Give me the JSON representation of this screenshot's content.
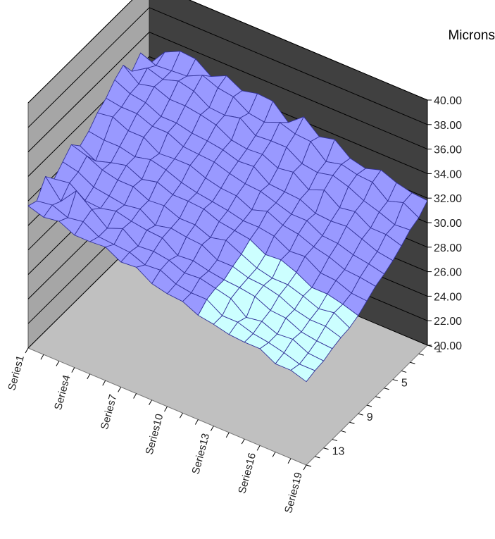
{
  "chart_data": {
    "type": "surface",
    "units_label": "Microns",
    "z_axis": {
      "min": 20,
      "max": 40,
      "step": 2,
      "tick_labels": [
        "20.00",
        "22.00",
        "24.00",
        "26.00",
        "28.00",
        "30.00",
        "32.00",
        "34.00",
        "36.00",
        "38.00",
        "40.00"
      ]
    },
    "series_axis": {
      "tick_labels": [
        "Series1",
        "Series4",
        "Series7",
        "Series10",
        "Series13",
        "Series16",
        "Series19"
      ],
      "count": 19
    },
    "category_axis": {
      "tick_labels": [
        "1",
        "5",
        "9",
        "13"
      ],
      "count": 15
    },
    "bands": [
      {
        "range": [
          20,
          30
        ],
        "color": "#ccffff"
      },
      {
        "range": [
          30,
          40
        ],
        "color": "#9999ff"
      }
    ],
    "colors": {
      "back_wall": "#404040",
      "side_wall": "#a6a6a6",
      "floor": "#c0c0c0",
      "grid": "#000000",
      "mesh_line": "#333399"
    },
    "values": [
      [
        31.6,
        31.3,
        32.6,
        31.7,
        32.4,
        33.1,
        32.3,
        32.8,
        33.6,
        34.1,
        34.9,
        35.4,
        34.2,
        35.0,
        33.4
      ],
      [
        31.2,
        31.5,
        31.1,
        31.9,
        32.1,
        32.7,
        31.6,
        32.6,
        33.8,
        33.9,
        34.3,
        34.4,
        35.0,
        34.5,
        34.9
      ],
      [
        31.4,
        31.0,
        32.5,
        31.0,
        31.4,
        32.1,
        32.0,
        32.6,
        33.2,
        33.9,
        34.1,
        34.7,
        34.6,
        34.6,
        35.5
      ],
      [
        30.8,
        31.2,
        31.5,
        30.9,
        31.2,
        31.8,
        32.3,
        32.3,
        33.2,
        33.4,
        33.5,
        34.2,
        35.0,
        34.7,
        35.4
      ],
      [
        30.8,
        30.5,
        30.5,
        31.2,
        31.0,
        31.8,
        31.7,
        32.6,
        32.4,
        33.4,
        33.5,
        34.2,
        34.7,
        35.3,
        34.5
      ],
      [
        30.9,
        30.4,
        31.0,
        30.9,
        31.2,
        31.2,
        32.0,
        32.3,
        32.5,
        32.8,
        33.2,
        34.0,
        33.9,
        34.8,
        35.1
      ],
      [
        30.2,
        30.3,
        30.1,
        30.7,
        30.4,
        31.3,
        31.5,
        31.8,
        32.5,
        32.7,
        33.1,
        33.7,
        33.8,
        34.6,
        34.4
      ],
      [
        30.3,
        29.8,
        30.2,
        30.6,
        30.7,
        30.8,
        31.5,
        31.5,
        32.0,
        32.6,
        32.9,
        33.0,
        34.1,
        33.8,
        34.7
      ],
      [
        29.5,
        29.9,
        30.0,
        29.7,
        30.5,
        30.8,
        31.4,
        31.3,
        31.7,
        32.2,
        32.5,
        32.8,
        33.2,
        33.6,
        34.6
      ],
      [
        29.2,
        29.3,
        29.5,
        29.8,
        30.4,
        30.3,
        30.9,
        31.1,
        31.6,
        31.9,
        32.6,
        32.9,
        33.3,
        34.1,
        33.4
      ],
      [
        29.1,
        29.1,
        29.6,
        29.5,
        29.7,
        30.6,
        30.7,
        30.8,
        31.0,
        31.8,
        31.7,
        32.3,
        33.3,
        33.7,
        34.4
      ],
      [
        28.5,
        29.1,
        29.3,
        29.3,
        29.7,
        30.0,
        30.5,
        30.8,
        31.4,
        31.4,
        31.6,
        32.5,
        32.5,
        33.6,
        33.3
      ],
      [
        28.3,
        28.3,
        29.0,
        29.2,
        29.3,
        29.4,
        29.8,
        30.6,
        30.8,
        31.0,
        31.5,
        31.6,
        32.3,
        32.5,
        33.6
      ],
      [
        28.0,
        28.3,
        28.0,
        29.0,
        29.2,
        29.1,
        29.9,
        29.9,
        30.6,
        31.0,
        30.9,
        32.1,
        32.6,
        32.8,
        32.6
      ],
      [
        27.9,
        27.9,
        28.2,
        28.4,
        28.9,
        29.1,
        29.4,
        30.0,
        30.1,
        30.3,
        30.8,
        31.2,
        32.2,
        32.5,
        32.3
      ],
      [
        27.9,
        27.7,
        27.7,
        28.3,
        28.3,
        28.7,
        28.7,
        29.2,
        29.8,
        30.2,
        30.9,
        31.4,
        31.6,
        32.4,
        32.7
      ],
      [
        27.2,
        27.4,
        27.8,
        27.7,
        28.0,
        28.2,
        28.7,
        29.1,
        29.3,
        29.8,
        30.4,
        30.6,
        31.2,
        31.4,
        32.2
      ],
      [
        27.2,
        27.0,
        27.2,
        27.5,
        28.0,
        28.4,
        28.4,
        28.6,
        29.2,
        29.6,
        29.9,
        30.6,
        30.7,
        31.8,
        31.9
      ],
      [
        26.8,
        27.0,
        27.1,
        27.4,
        27.6,
        27.7,
        28.0,
        28.5,
        29.0,
        29.3,
        29.7,
        30.2,
        30.8,
        31.1,
        31.8
      ]
    ]
  }
}
